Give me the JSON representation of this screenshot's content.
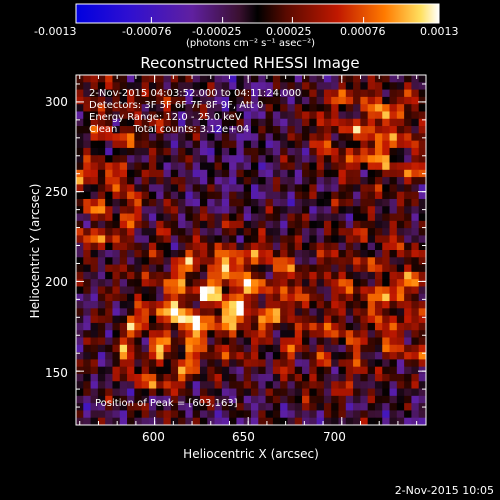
{
  "chart_data": {
    "type": "heatmap",
    "title": "Reconstructed RHESSI Image",
    "xlabel": "Heliocentric X (arcsec)",
    "ylabel": "Heliocentric Y (arcsec)",
    "xlim": [
      558,
      745
    ],
    "ylim": [
      120,
      315
    ],
    "x_ticks": [
      600,
      650,
      700
    ],
    "y_ticks": [
      150,
      200,
      250,
      300
    ],
    "colorbar": {
      "range": [
        -0.0013,
        0.0013
      ],
      "ticks": [
        "-0.0013",
        "-0.00076",
        "-0.00025",
        "0.00025",
        "0.00076",
        "0.0013"
      ],
      "unit_label": "(photons cm⁻² s⁻¹ asec⁻²)"
    },
    "annotations": [
      "2-Nov-2015 04:03:52.000 to 04:11:24.000",
      "Detectors: 3F 5F 6F 7F 8F 9F, Att 0",
      "Energy Range: 12.0 - 25.0 keV",
      "Clean     Total counts: 3.12e+04"
    ],
    "peak_label": "Position of Peak = [603,163]",
    "bright_sources": [
      {
        "x": 568,
        "y": 242,
        "level": 1.0
      },
      {
        "x": 603,
        "y": 163,
        "level": 1.0
      },
      {
        "x": 628,
        "y": 195,
        "level": 0.9
      },
      {
        "x": 655,
        "y": 197,
        "level": 0.85
      },
      {
        "x": 705,
        "y": 285,
        "level": 0.8
      },
      {
        "x": 740,
        "y": 180,
        "level": 0.85
      },
      {
        "x": 735,
        "y": 280,
        "level": 0.75
      },
      {
        "x": 585,
        "y": 300,
        "level": 0.7
      },
      {
        "x": 715,
        "y": 210,
        "level": 0.6
      },
      {
        "x": 690,
        "y": 155,
        "level": 0.6
      }
    ]
  },
  "footer": {
    "timestamp": "2-Nov-2015 10:05"
  }
}
